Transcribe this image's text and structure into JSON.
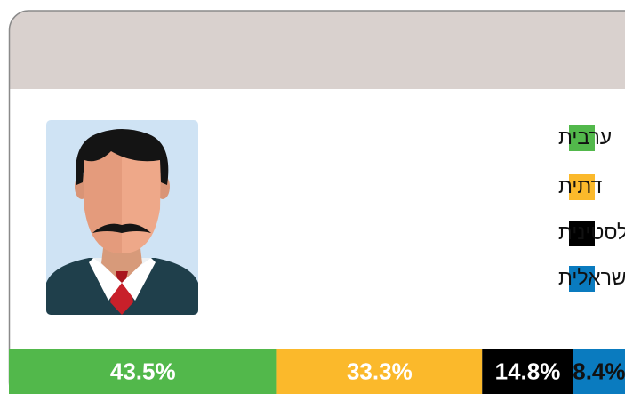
{
  "chart_data": {
    "type": "bar",
    "stacked": true,
    "series": [
      {
        "name": "ערבית",
        "color": "#52b84b",
        "label_color": "#ffffff",
        "values": [
          43.5
        ],
        "value_labels": [
          "43.5%"
        ]
      },
      {
        "name": "דתית",
        "color": "#fbb92b",
        "label_color": "#ffffff",
        "values": [
          33.3
        ],
        "value_labels": [
          "33.3%"
        ]
      },
      {
        "name": "פלסטינית",
        "color": "#000000",
        "label_color": "#ffffff",
        "values": [
          14.8
        ],
        "value_labels": [
          "14.8%"
        ]
      },
      {
        "name": "ישראלית",
        "color": "#0a7bbf",
        "label_color": "#111111",
        "values": [
          8.4
        ],
        "value_labels": [
          "8.4%"
        ]
      }
    ]
  }
}
